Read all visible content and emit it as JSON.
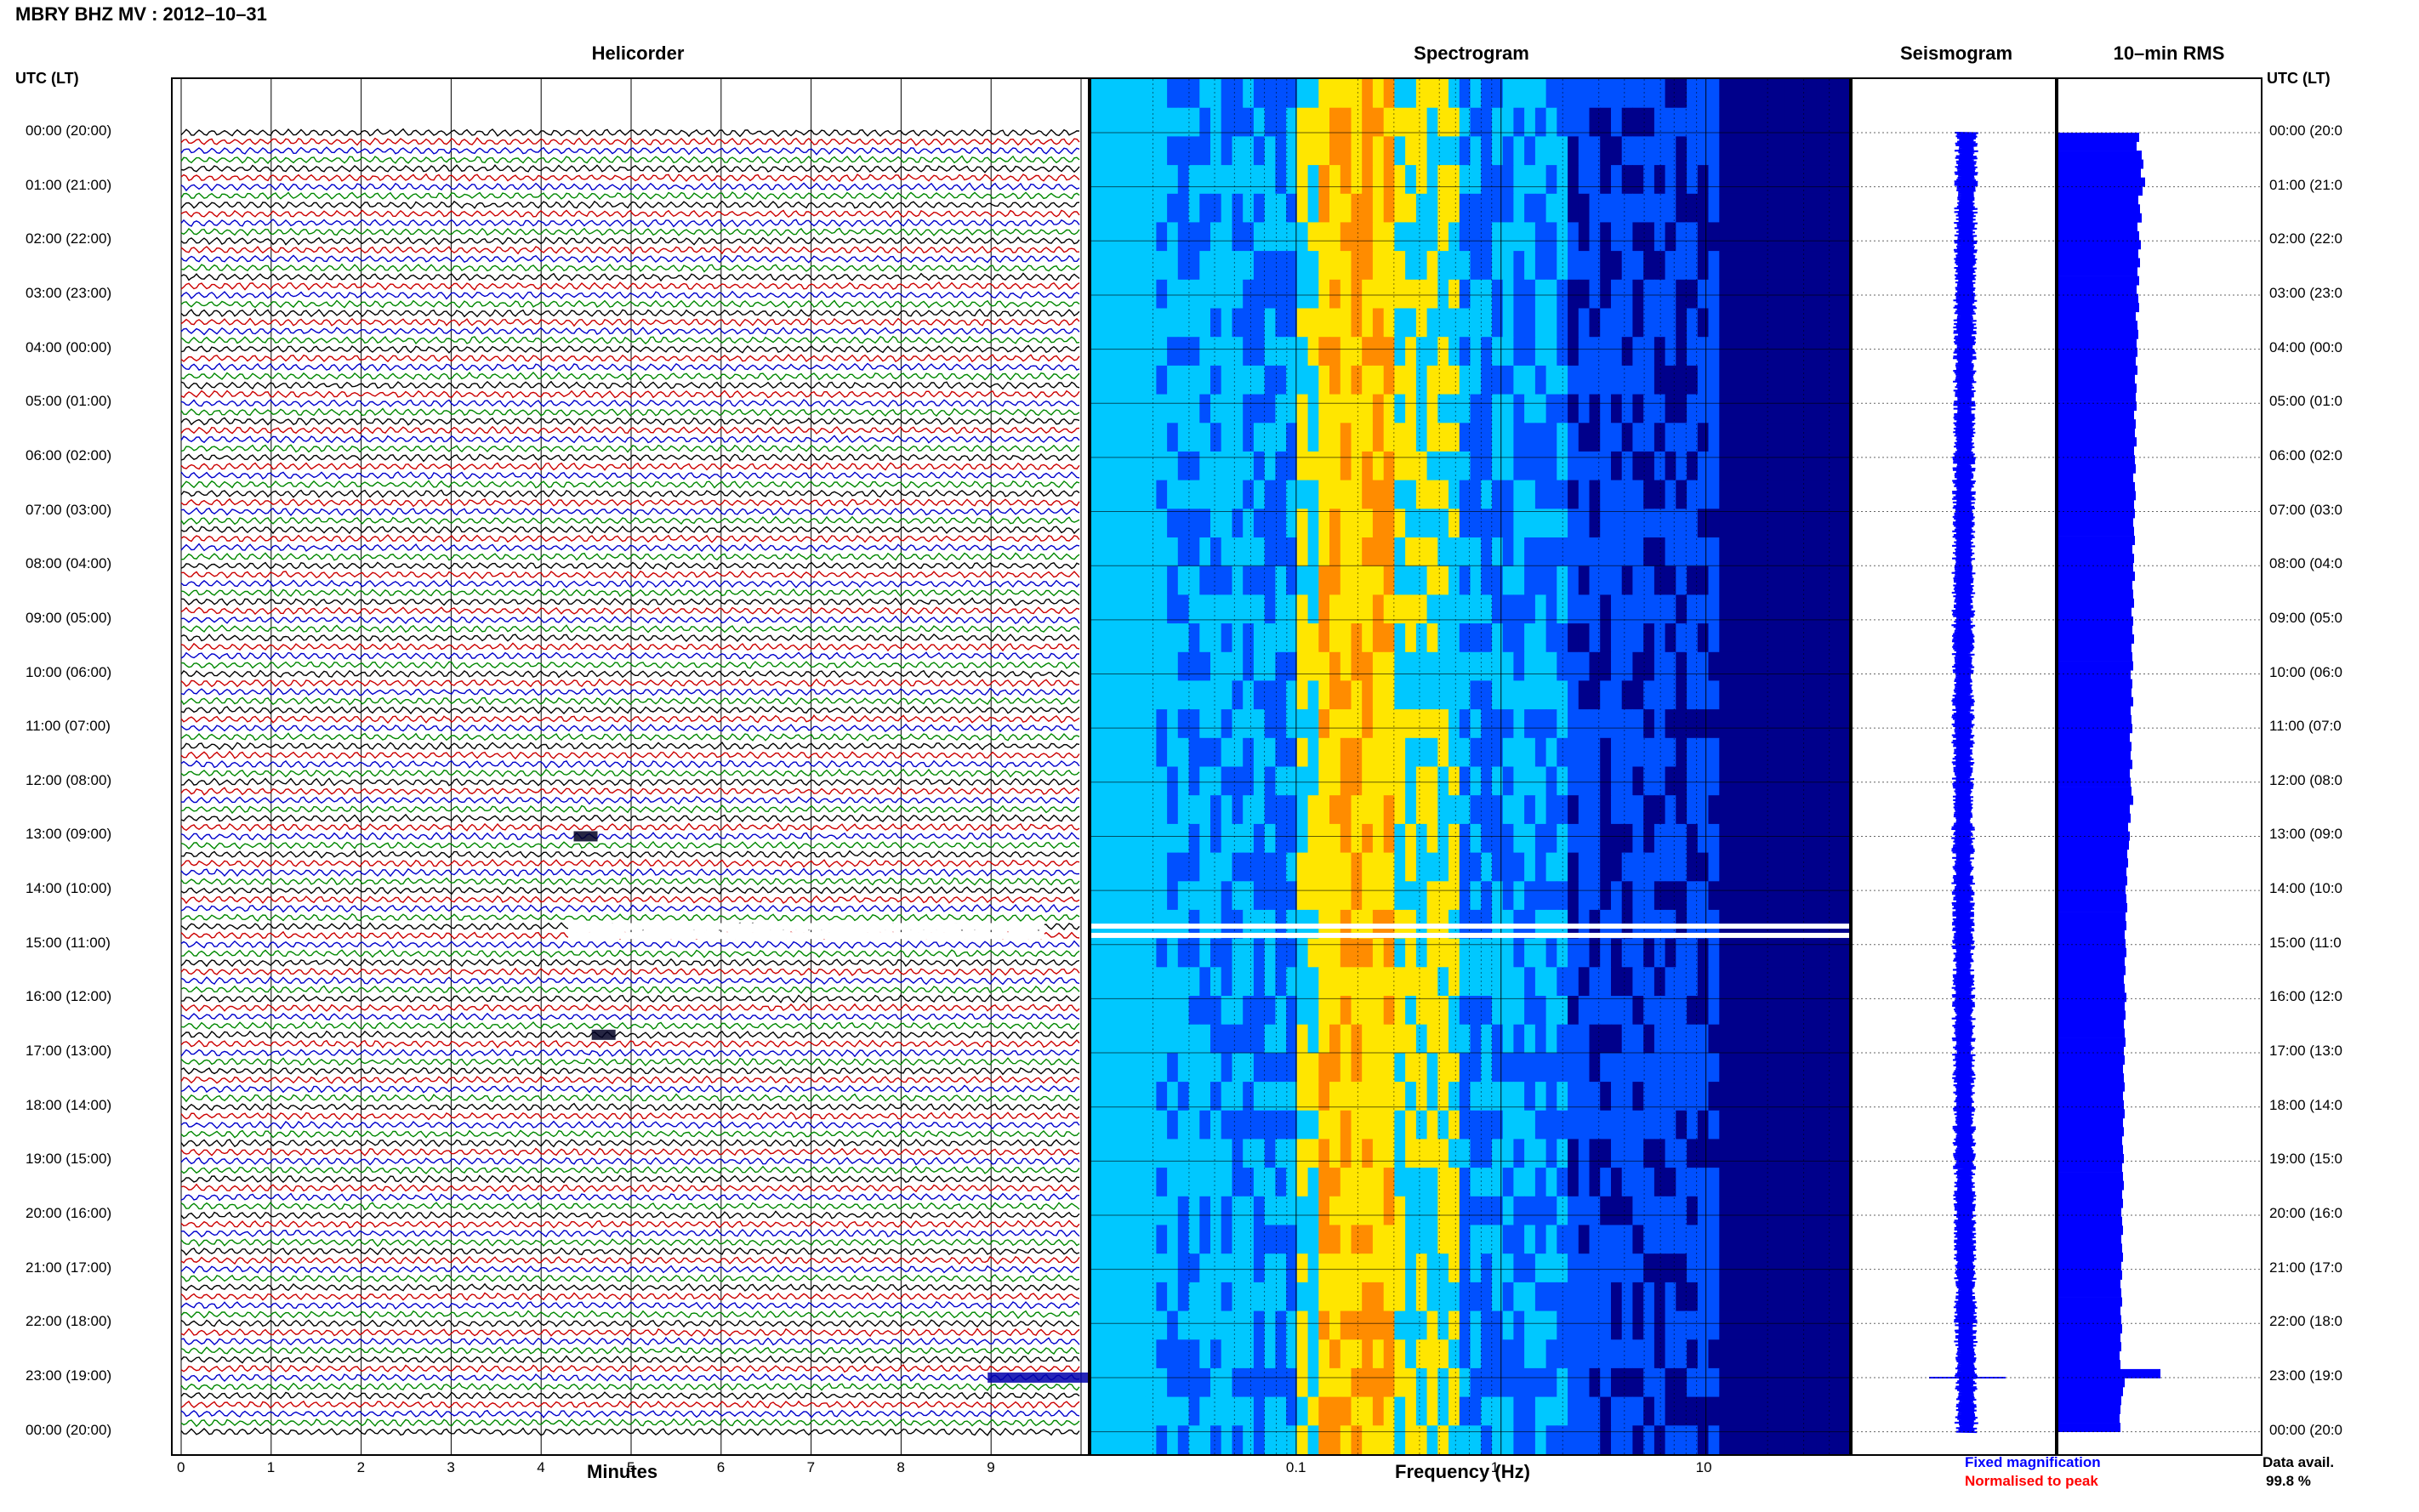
{
  "header": {
    "title": "MBRY BHZ MV : 2012–10–31"
  },
  "columns": {
    "helicorder": "Helicorder",
    "spectrogram": "Spectrogram",
    "seismogram": "Seismogram",
    "rms": "10–min RMS"
  },
  "axes": {
    "left_head": "UTC (LT)",
    "right_head": "UTC (LT)",
    "minutes_label": "Minutes",
    "frequency_label": "Frequency (Hz)",
    "minute_ticks": [
      "0",
      "1",
      "2",
      "3",
      "4",
      "5",
      "6",
      "7",
      "8",
      "9"
    ],
    "frequency_ticks": [
      "0.1",
      "1",
      "10"
    ]
  },
  "hour_labels_left": [
    "00:00 (20:00)",
    "01:00 (21:00)",
    "02:00 (22:00)",
    "03:00 (23:00)",
    "04:00 (00:00)",
    "05:00 (01:00)",
    "06:00 (02:00)",
    "07:00 (03:00)",
    "08:00 (04:00)",
    "09:00 (05:00)",
    "10:00 (06:00)",
    "11:00 (07:00)",
    "12:00 (08:00)",
    "13:00 (09:00)",
    "14:00 (10:00)",
    "15:00 (11:00)",
    "16:00 (12:00)",
    "17:00 (13:00)",
    "18:00 (14:00)",
    "19:00 (15:00)",
    "20:00 (16:00)",
    "21:00 (17:00)",
    "22:00 (18:00)",
    "23:00 (19:00)",
    "00:00 (20:00)"
  ],
  "hour_labels_right": [
    "00:00 (20:0",
    "01:00 (21:0",
    "02:00 (22:0",
    "03:00 (23:0",
    "04:00 (00:0",
    "05:00 (01:0",
    "06:00 (02:0",
    "07:00 (03:0",
    "08:00 (04:0",
    "09:00 (05:0",
    "10:00 (06:0",
    "11:00 (07:0",
    "12:00 (08:0",
    "13:00 (09:0",
    "14:00 (10:0",
    "15:00 (11:0",
    "16:00 (12:0",
    "17:00 (13:0",
    "18:00 (14:0",
    "19:00 (15:0",
    "20:00 (16:0",
    "21:00 (17:0",
    "22:00 (18:0",
    "23:00 (19:0",
    "00:00 (20:0"
  ],
  "legend": {
    "fixed": "Fixed magnification",
    "normalised": "Normalised to peak",
    "fixed_color": "#0000ff",
    "normalised_color": "#ff0000"
  },
  "data_avail": {
    "label": "Data avail.",
    "value": "99.8 %"
  },
  "chart_data": [
    {
      "type": "line",
      "title": "Helicorder",
      "xlabel": "Minutes",
      "xlim": [
        0,
        10
      ],
      "rows_per_hour": 6,
      "trace_colors": [
        "#000000",
        "#cc0000",
        "#0000cc",
        "#008800"
      ],
      "events": [
        {
          "utc": "13:00",
          "minute": 4.4
        },
        {
          "utc": "16:40",
          "minute": 4.6
        },
        {
          "utc": "23:00",
          "minute": 9.0
        }
      ],
      "gap_rows": [
        "14:40",
        "14:50"
      ]
    },
    {
      "type": "heatmap",
      "title": "Spectrogram",
      "xlabel": "Frequency (Hz)",
      "x_scale": "log",
      "xlim": [
        0.01,
        50
      ],
      "colormap": [
        "#00008b",
        "#0050ff",
        "#00c8ff",
        "#ffe600",
        "#ff8c00"
      ],
      "peak_band_hz": [
        0.13,
        0.3
      ]
    },
    {
      "type": "line",
      "title": "Seismogram",
      "color": "#0000ff"
    },
    {
      "type": "bar",
      "title": "10–min RMS",
      "orientation": "horizontal",
      "color": "#0000ff",
      "values": [
        0.95,
        0.92,
        0.98,
        1.0,
        0.97,
        1.02,
        0.99,
        0.94,
        0.96,
        0.98,
        0.93,
        0.95,
        0.97,
        0.94,
        0.96,
        0.93,
        0.95,
        0.92,
        0.94,
        0.95,
        0.91,
        0.93,
        0.94,
        0.92,
        0.93,
        0.91,
        0.93,
        0.9,
        0.92,
        0.91,
        0.92,
        0.89,
        0.91,
        0.9,
        0.92,
        0.89,
        0.9,
        0.91,
        0.88,
        0.9,
        0.91,
        0.89,
        0.9,
        0.88,
        0.89,
        0.9,
        0.87,
        0.89,
        0.88,
        0.9,
        0.87,
        0.88,
        0.89,
        0.86,
        0.88,
        0.87,
        0.89,
        0.86,
        0.87,
        0.88,
        0.85,
        0.87,
        0.86,
        0.88,
        0.85,
        0.86,
        0.87,
        0.84,
        0.86,
        0.85,
        0.87,
        0.84,
        0.85,
        0.86,
        0.88,
        0.84,
        0.85,
        0.82,
        0.84,
        0.83,
        0.81,
        0.82,
        0.8,
        0.81,
        0.79,
        0.8,
        0.81,
        0.79,
        0.8,
        0.78,
        0.79,
        0.8,
        0.78,
        0.79,
        0.77,
        0.78,
        0.8,
        0.78,
        0.79,
        0.77,
        0.78,
        0.79,
        0.77,
        0.78,
        0.76,
        0.77,
        0.78,
        0.76,
        0.77,
        0.78,
        0.76,
        0.77,
        0.75,
        0.76,
        0.77,
        0.75,
        0.76,
        0.77,
        0.75,
        0.76,
        0.74,
        0.75,
        0.76,
        0.74,
        0.75,
        0.76,
        0.74,
        0.75,
        0.73,
        0.74,
        0.75,
        0.73,
        0.74,
        0.75,
        0.73,
        0.74,
        0.72,
        0.73,
        1.2,
        0.78,
        0.76,
        0.74,
        0.73,
        0.72,
        0.73
      ]
    }
  ]
}
